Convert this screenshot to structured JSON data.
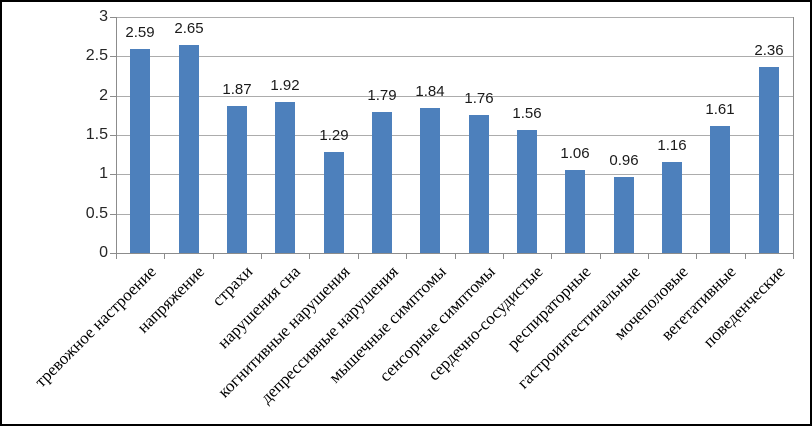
{
  "chart_data": {
    "type": "bar",
    "title": "",
    "categories": [
      "тревожное настроение",
      "напряжение",
      "страхи",
      "нарушения сна",
      "когнитивные нарушения",
      "депрессивные нарушения",
      "мышечные симптомы",
      "сенсорные симптомы",
      "сердечно-сосудистые",
      "респираторные",
      "гастроинтестинальные",
      "мочеполовые",
      "вегетативные",
      "поведенческие"
    ],
    "values": [
      2.59,
      2.65,
      1.87,
      1.92,
      1.29,
      1.79,
      1.84,
      1.76,
      1.56,
      1.06,
      0.96,
      1.16,
      1.61,
      2.36
    ],
    "value_labels": [
      "2.59",
      "2.65",
      "1.87",
      "1.92",
      "1.29",
      "1.79",
      "1.84",
      "1.76",
      "1.56",
      "1.06",
      "0.96",
      "1.16",
      "1.61",
      "2.36"
    ],
    "xlabel": "",
    "ylabel": "",
    "ylim": [
      0,
      3
    ],
    "y_ticks": [
      0,
      0.5,
      1,
      1.5,
      2,
      2.5,
      3
    ],
    "y_tick_labels": [
      "0",
      "0.5",
      "1",
      "1.5",
      "2",
      "2.5",
      "3"
    ],
    "grid": true,
    "legend_position": "none",
    "bar_color": "#4D80BC",
    "gridline_color": "#ACACAC",
    "axis_color": "#8C8C8C",
    "value_label_color": "#1A1A1A",
    "category_label_color": "#000000",
    "frame_border_color": "#000000",
    "background_color": "#FFFFFF"
  }
}
